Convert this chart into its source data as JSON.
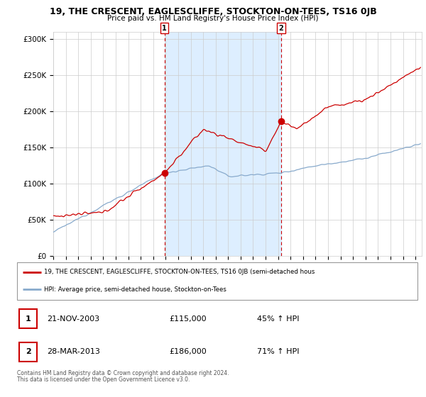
{
  "title": "19, THE CRESCENT, EAGLESCLIFFE, STOCKTON-ON-TEES, TS16 0JB",
  "subtitle": "Price paid vs. HM Land Registry's House Price Index (HPI)",
  "ylim": [
    0,
    310000
  ],
  "yticks": [
    0,
    50000,
    100000,
    150000,
    200000,
    250000,
    300000
  ],
  "ytick_labels": [
    "£0",
    "£50K",
    "£100K",
    "£150K",
    "£200K",
    "£250K",
    "£300K"
  ],
  "xlim_start": 1995.0,
  "xlim_end": 2024.5,
  "sale1_year": 2003.9,
  "sale1_price": 115000,
  "sale1_label": "1",
  "sale1_date": "21-NOV-2003",
  "sale1_display": "£115,000",
  "sale1_pct": "45% ↑ HPI",
  "sale2_year": 2013.25,
  "sale2_price": 186000,
  "sale2_label": "2",
  "sale2_date": "28-MAR-2013",
  "sale2_display": "£186,000",
  "sale2_pct": "71% ↑ HPI",
  "property_color": "#cc0000",
  "hpi_color": "#88aacc",
  "shade_color": "#ddeeff",
  "vline_color": "#cc0000",
  "legend_property": "19, THE CRESCENT, EAGLESCLIFFE, STOCKTON-ON-TEES, TS16 0JB (semi-detached hous",
  "legend_hpi": "HPI: Average price, semi-detached house, Stockton-on-Tees",
  "footnote1": "Contains HM Land Registry data © Crown copyright and database right 2024.",
  "footnote2": "This data is licensed under the Open Government Licence v3.0.",
  "table_box_color": "#cc0000",
  "grid_color": "#cccccc"
}
